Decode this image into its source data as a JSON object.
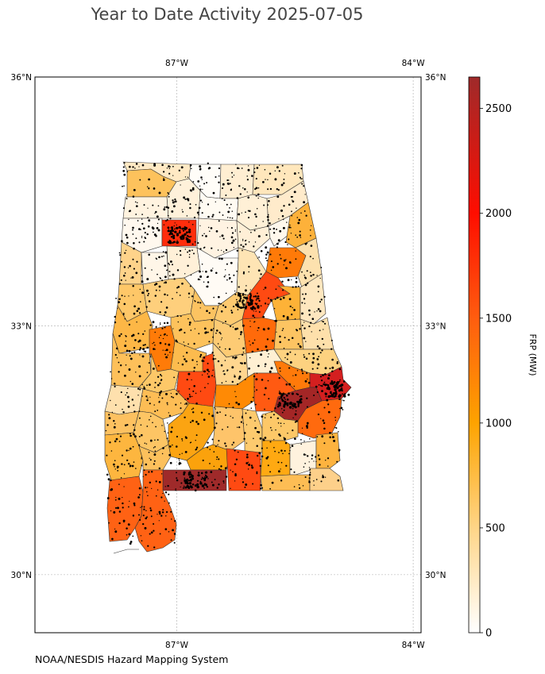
{
  "title": "Year to Date Activity 2025-07-05",
  "credit": "NOAA/NESDIS Hazard Mapping System",
  "map": {
    "region": "Alabama",
    "extent_lon": [
      -88.8,
      -83.9
    ],
    "extent_lat": [
      29.3,
      36.0
    ],
    "lon_ticks": [
      {
        "lon": -87,
        "label": "87°W"
      },
      {
        "lon": -84,
        "label": "84°W"
      }
    ],
    "lat_ticks": [
      {
        "lat": 36,
        "label": "36°N"
      },
      {
        "lat": 33,
        "label": "33°N"
      },
      {
        "lat": 30,
        "label": "30°N"
      }
    ],
    "gridlines": true
  },
  "colorbar": {
    "label": "FRP (MW)",
    "min": 0,
    "max": 2650,
    "ticks": [
      {
        "value": 0,
        "label": "0"
      },
      {
        "value": 500,
        "label": "500"
      },
      {
        "value": 1000,
        "label": "1000"
      },
      {
        "value": 1500,
        "label": "1500"
      },
      {
        "value": 2000,
        "label": "2000"
      },
      {
        "value": 2500,
        "label": "2500"
      }
    ],
    "stops": [
      {
        "value": 0,
        "color": "#ffffff"
      },
      {
        "value": 500,
        "color": "#fed587"
      },
      {
        "value": 1000,
        "color": "#fda300"
      },
      {
        "value": 1500,
        "color": "#ff5d0f"
      },
      {
        "value": 2000,
        "color": "#ff0d00"
      },
      {
        "value": 2650,
        "color": "#9f2a2a"
      }
    ]
  },
  "chart_data": {
    "type": "heatmap",
    "value_label": "FRP (MW)",
    "note_colors": {
      "outline": "#333333",
      "fire_points": "#000000"
    }
  }
}
